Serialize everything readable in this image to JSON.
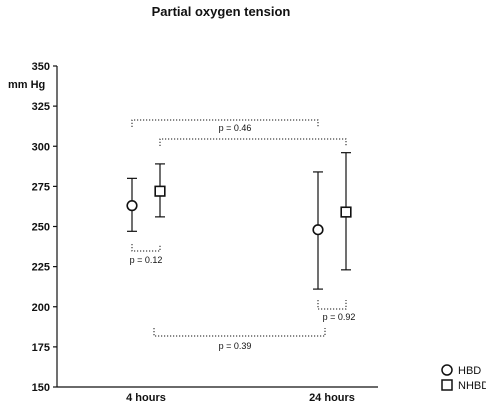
{
  "chart_data": {
    "type": "scatter",
    "title": "Partial oxygen tension",
    "ylabel": "mm Hg",
    "ylim": [
      150,
      350
    ],
    "yticks": [
      150,
      175,
      200,
      225,
      250,
      275,
      300,
      325,
      350
    ],
    "categories": [
      "4 hours",
      "24 hours"
    ],
    "series": [
      {
        "name": "HBD",
        "marker": "circle",
        "mean": [
          263,
          248
        ],
        "upper": [
          280,
          284
        ],
        "lower": [
          247,
          211
        ]
      },
      {
        "name": "NHBD",
        "marker": "square",
        "mean": [
          272,
          259
        ],
        "upper": [
          289,
          296
        ],
        "lower": [
          256,
          223
        ]
      }
    ],
    "annotations": [
      {
        "text": "p = 0.12",
        "compare": "HBD vs NHBD at 4 hours"
      },
      {
        "text": "p = 0.92",
        "compare": "HBD vs NHBD at 24 hours"
      },
      {
        "text": "p = 0.46",
        "compare": "NHBD 4 hours vs 24 hours"
      },
      {
        "text": "p = 0.39",
        "compare": "HBD 4 hours vs 24 hours"
      }
    ],
    "legend_position": "bottom-right",
    "grid": false
  }
}
